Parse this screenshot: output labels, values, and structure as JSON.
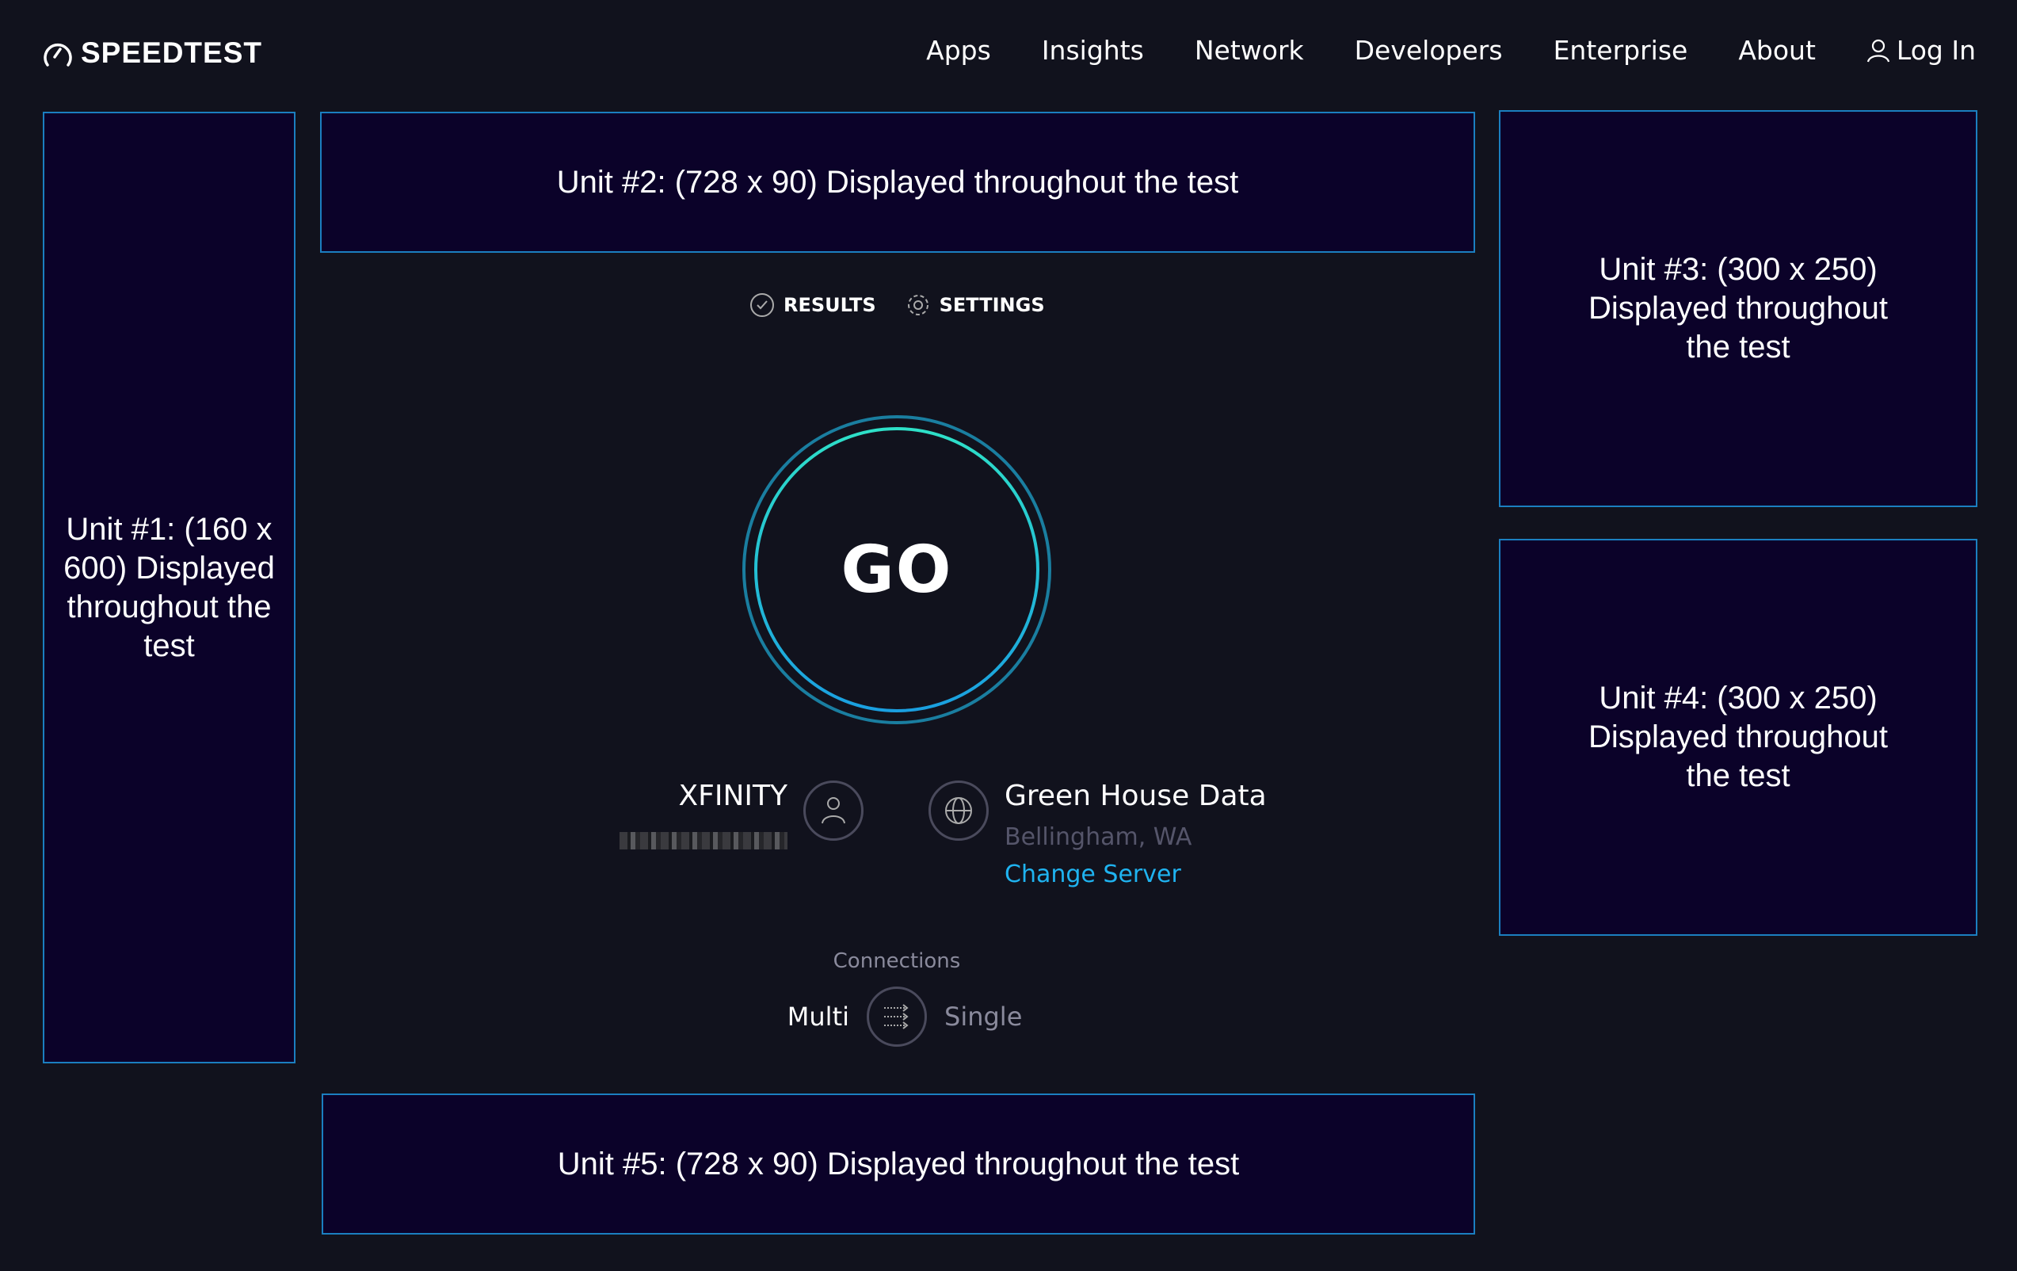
{
  "header": {
    "logo_text": "SPEEDTEST",
    "nav": [
      "Apps",
      "Insights",
      "Network",
      "Developers",
      "Enterprise",
      "About"
    ],
    "login": "Log In"
  },
  "ads": {
    "unit1": "Unit #1: (160 x 600) Displayed throughout the test",
    "unit2": "Unit #2: (728 x 90) Displayed throughout the test",
    "unit3": "Unit #3: (300 x 250) Displayed throughout the test",
    "unit4": "Unit #4: (300 x 250) Displayed throughout the test",
    "unit5": "Unit #5: (728 x 90) Displayed throughout the test"
  },
  "tabs": {
    "results": "RESULTS",
    "settings": "SETTINGS"
  },
  "go_button": "GO",
  "isp": {
    "name": "XFINITY",
    "icon": "person-icon"
  },
  "server": {
    "name": "Green House Data",
    "location": "Bellingham, WA",
    "change": "Change Server",
    "icon": "globe-icon"
  },
  "connections": {
    "label": "Connections",
    "multi": "Multi",
    "single": "Single",
    "selected": "Multi"
  },
  "colors": {
    "background": "#11121d",
    "ad_fill": "#0b0229",
    "ad_border": "#1b7fc0",
    "link": "#1fb3f0",
    "ring_outer": "#1a8fb0",
    "ring_inner": "#2ad4d0"
  }
}
